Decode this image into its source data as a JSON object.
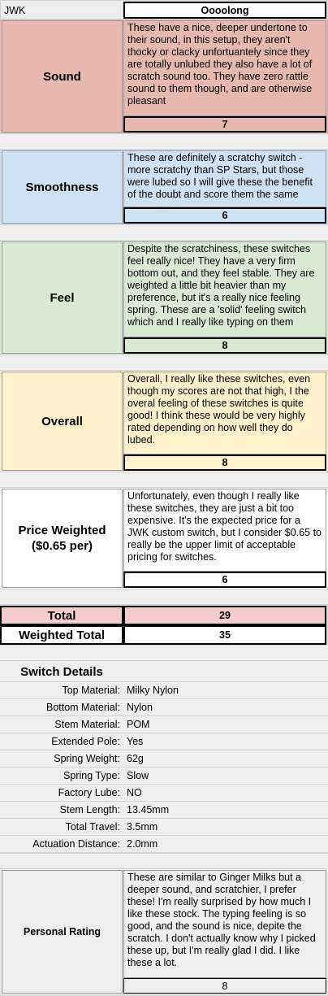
{
  "header": {
    "brand": "JWK",
    "switch_name": "Oooolong"
  },
  "colors": {
    "sound": "#e6b8af",
    "smoothness": "#cfe2f3",
    "feel": "#d9ead3",
    "overall": "#fff2cc",
    "price": "#ffffff",
    "total": "#f4cccc",
    "weighted_total": "#ffffff"
  },
  "sections": {
    "sound": {
      "label": "Sound",
      "text": "These have a nice, deeper undertone to their sound, in this setup, they aren't thocky or clacky unfortuantely since they are totally unlubed they also have a lot of scratch sound too. They have zero rattle sound to them though, and are otherwise pleasant",
      "score": "7"
    },
    "smoothness": {
      "label": "Smoothness",
      "text": "These are definitely a scratchy switch - more scratchy than SP Stars, but those were lubed so I will give these the benefit of the doubt and score them the same",
      "score": "6"
    },
    "feel": {
      "label": "Feel",
      "text": "Despite the scratchiness, these switches feel really nice! They have a very firm bottom out, and they feel stable. They are weighted a little bit heavier than my preference, but it's a really nice feeling spring. These are a 'solid' feeling switch which and I really like typing on them",
      "score": "8"
    },
    "overall": {
      "label": "Overall",
      "text": "Overall, I really like these switches, even though my scores are not that high, I the overal feeling of these switches is quite good! I think these would be very highly rated depending on how well they do lubed.",
      "score": "8"
    },
    "price": {
      "label_line1": "Price Weighted",
      "label_line2": "($0.65 per)",
      "text": "Unfortunately, even though I really like these switches, they are just a bit too expensive. It's the expected price for a JWK custom switch, but I consider $0.65 to really be the upper limit of acceptable pricing for switches.",
      "score": "6"
    }
  },
  "totals": {
    "total_label": "Total",
    "total_value": "29",
    "weighted_label": "Weighted Total",
    "weighted_value": "35"
  },
  "details": {
    "heading": "Switch Details",
    "rows": [
      {
        "label": "Top Material:",
        "value": "Milky Nylon"
      },
      {
        "label": "Bottom Material:",
        "value": "Nylon"
      },
      {
        "label": "Stem Material:",
        "value": "POM"
      },
      {
        "label": "Extended Pole:",
        "value": "Yes"
      },
      {
        "label": "Spring Weight:",
        "value": "62g"
      },
      {
        "label": "Spring Type:",
        "value": "Slow"
      },
      {
        "label": "Factory Lube:",
        "value": "NO"
      },
      {
        "label": "Stem Length:",
        "value": "13.45mm"
      },
      {
        "label": "Total Travel:",
        "value": "3.5mm"
      },
      {
        "label": "Actuation Distance:",
        "value": "2.0mm"
      }
    ]
  },
  "personal": {
    "label": "Personal Rating",
    "text": "These are similar to Ginger Milks but a deeper sound, and scratchier, I prefer these! I'm really surprised by how much I like these stock. The typing feeling is so good, and the sound is nice, depite the scratch. I don't actually know why I picked these up, but I'm really glad I did. I like these a lot.",
    "score": "8"
  }
}
